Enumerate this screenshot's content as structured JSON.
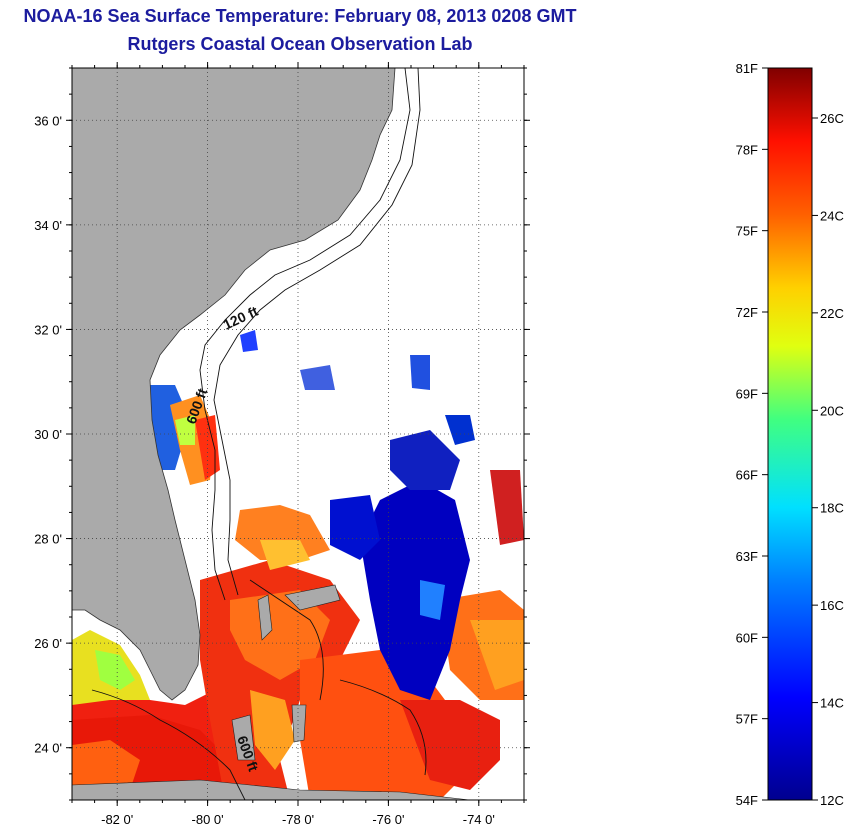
{
  "title": {
    "line1": "NOAA-16 Sea Surface Temperature:  February 08, 2013 0208 GMT",
    "line2": "Rutgers Coastal Ocean Observation Lab"
  },
  "map": {
    "lat_ticks": [
      {
        "value": 36,
        "label": "36 0'"
      },
      {
        "value": 34,
        "label": "34 0'"
      },
      {
        "value": 32,
        "label": "32 0'"
      },
      {
        "value": 30,
        "label": "30 0'"
      },
      {
        "value": 28,
        "label": "28 0'"
      },
      {
        "value": 26,
        "label": "26 0'"
      },
      {
        "value": 24,
        "label": "24 0'"
      }
    ],
    "lon_ticks": [
      {
        "value": -82,
        "label": "-82 0'"
      },
      {
        "value": -80,
        "label": "-80 0'"
      },
      {
        "value": -78,
        "label": "-78 0'"
      },
      {
        "value": -76,
        "label": "-76 0'"
      },
      {
        "value": -74,
        "label": "-74 0'"
      }
    ],
    "lon_range": [
      -83,
      -73
    ],
    "lat_range": [
      23,
      37
    ],
    "contour_labels": {
      "c120": "120 ft",
      "c600a": "600 ft",
      "c600b": "600 ft"
    },
    "colors": {
      "land": "#aaaaaa",
      "cloud": "#ffffff",
      "gridline": "#444444"
    }
  },
  "colorbar": {
    "f_labels": [
      "81F",
      "78F",
      "75F",
      "72F",
      "69F",
      "66F",
      "63F",
      "60F",
      "57F",
      "54F"
    ],
    "c_labels": [
      "26C",
      "24C",
      "22C",
      "20C",
      "18C",
      "16C",
      "14C",
      "12C"
    ]
  }
}
